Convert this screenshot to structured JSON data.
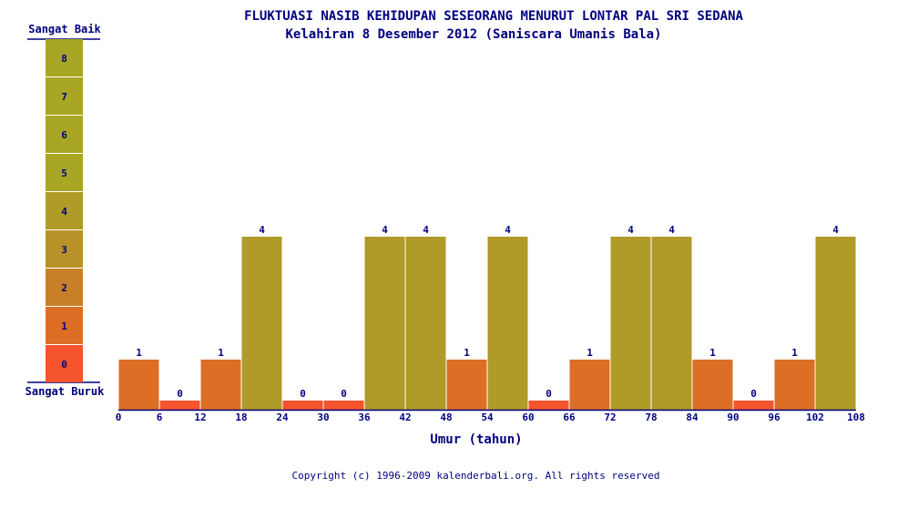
{
  "chart_data": {
    "type": "bar",
    "title": "FLUKTUASI NASIB KEHIDUPAN SESEORANG MENURUT LONTAR PAL SRI SEDANA",
    "subtitle": "Kelahiran 8 Desember 2012 (Saniscara Umanis Bala)",
    "xlabel": "Umur (tahun)",
    "x_ticks": [
      "0",
      "6",
      "12",
      "18",
      "24",
      "30",
      "36",
      "42",
      "48",
      "54",
      "60",
      "66",
      "72",
      "78",
      "84",
      "90",
      "96",
      "102",
      "108"
    ],
    "values": [
      1,
      0,
      1,
      4,
      0,
      0,
      4,
      4,
      1,
      4,
      0,
      1,
      4,
      4,
      1,
      0,
      1,
      4
    ],
    "ylim": [
      0,
      8
    ],
    "legend": {
      "top_label": "Sangat Baik",
      "bottom_label": "Sangat Buruk",
      "levels": [
        "0",
        "1",
        "2",
        "3",
        "4",
        "5",
        "6",
        "7",
        "8"
      ]
    },
    "level_colors": [
      "#F5542D",
      "#DC6E25",
      "#C88028",
      "#B89228",
      "#B09A28",
      "#A8A624",
      "#A8A624",
      "#A8A624",
      "#A8A624"
    ]
  },
  "footer": "Copyright (c) 1996-2009 kalenderbali.org. All rights reserved"
}
